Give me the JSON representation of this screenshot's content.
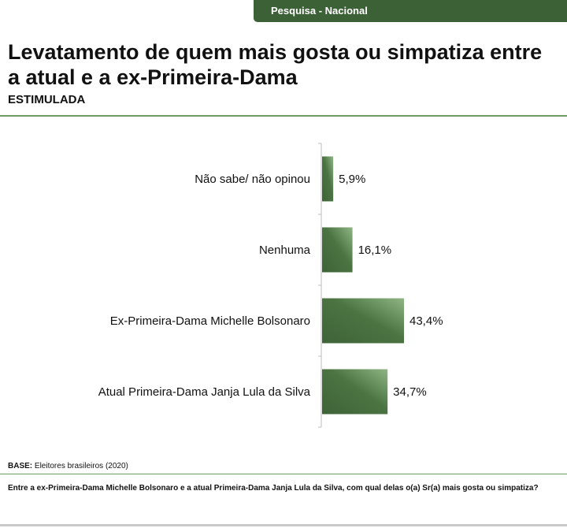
{
  "header": {
    "tab_label": "Pesquisa - Nacional"
  },
  "title": "Levatamento de quem mais gosta ou simpatiza entre a atual e a ex-Primeira-Dama",
  "subtitle": "ESTIMULADA",
  "footer": {
    "base_label": "BASE:",
    "base_text": "Eleitores brasileiros (2020)",
    "question": "Entre a ex-Primeira-Dama Michelle Bolsonaro e a atual Primeira-Dama Janja Lula da Silva, com qual delas o(a) Sr(a) mais gosta ou simpatiza?"
  },
  "colors": {
    "bar_dark": "#3e6337",
    "bar_light": "#8fb584",
    "accent": "#3d6136"
  },
  "chart_data": {
    "type": "bar",
    "orientation": "horizontal",
    "title": "",
    "xlabel": "",
    "ylabel": "",
    "grid": false,
    "xlim": [
      0,
      43.4
    ],
    "categories": [
      "Não sabe/ não opinou",
      "Nenhuma",
      "Ex-Primeira-Dama Michelle Bolsonaro",
      "Atual Primeira-Dama Janja Lula da Silva"
    ],
    "values": [
      5.9,
      16.1,
      43.4,
      34.7
    ],
    "value_labels": [
      "5,9%",
      "16,1%",
      "43,4%",
      "34,7%"
    ]
  }
}
